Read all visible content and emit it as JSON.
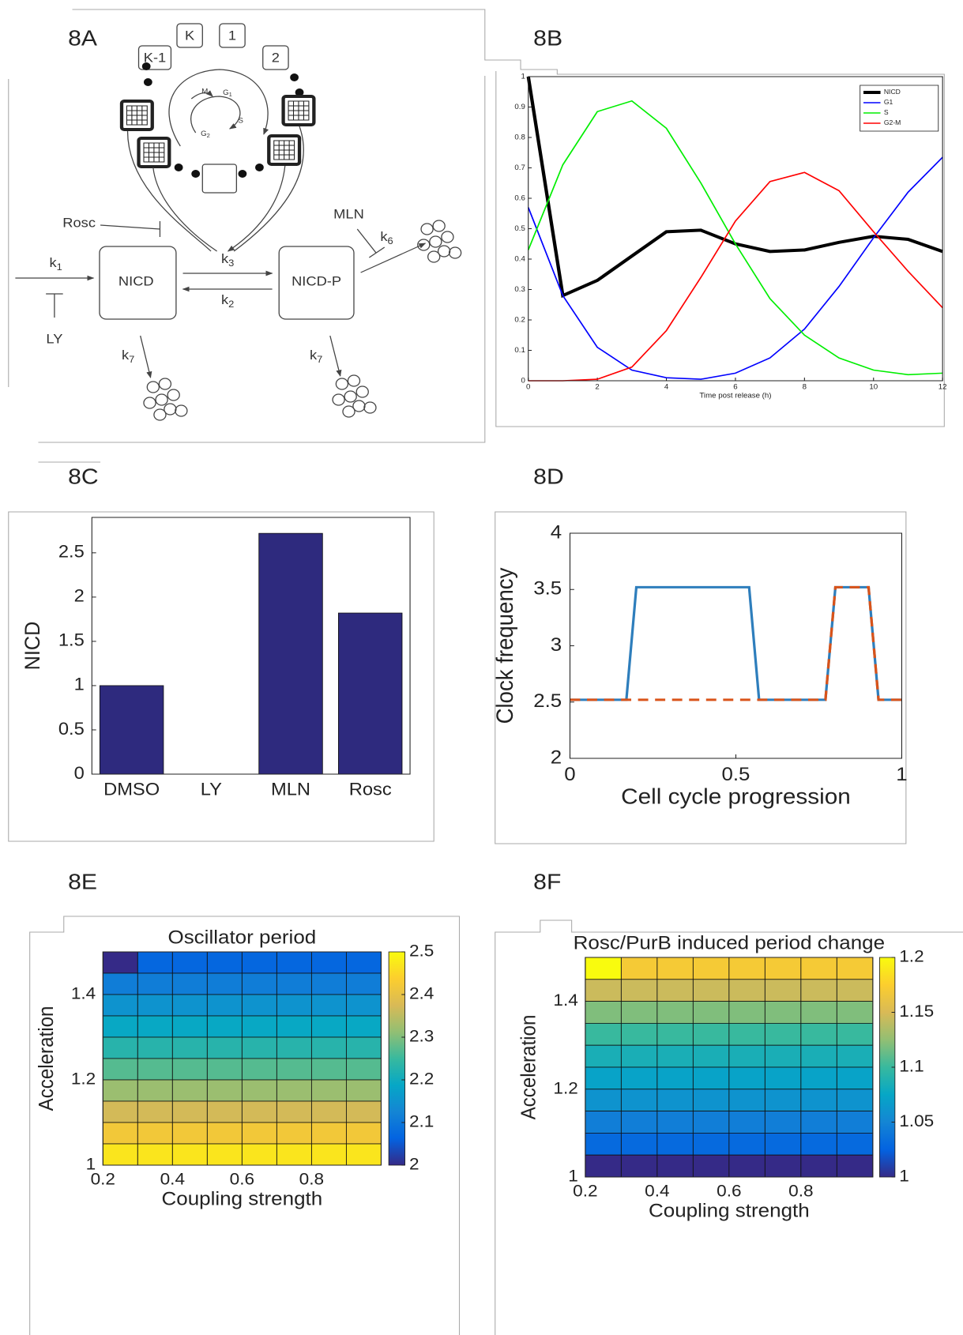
{
  "panel_labels": [
    "8A",
    "8B",
    "8C",
    "8D",
    "8E",
    "8F"
  ],
  "diagram": {
    "cycle_boxes": [
      "K",
      "1",
      "K-1",
      "2"
    ],
    "phases": [
      "M",
      "S"
    ],
    "phases_sub": [
      {
        "symbol": "G",
        "subscript": "1"
      },
      {
        "symbol": "G",
        "subscript": "2"
      }
    ],
    "drugs": [
      "Rosc",
      "MLN",
      "LY"
    ],
    "species": [
      "NICD",
      "NICD-P"
    ],
    "rates": [
      {
        "symbol": "k",
        "subscript": "1"
      },
      {
        "symbol": "k",
        "subscript": "3"
      },
      {
        "symbol": "k",
        "subscript": "2"
      },
      {
        "symbol": "k",
        "subscript": "6"
      },
      {
        "symbol": "k",
        "subscript": "7"
      },
      {
        "symbol": "k",
        "subscript": "7"
      }
    ]
  },
  "chart_data": [
    {
      "type": "line",
      "xlabel": "Time post release (h)",
      "x": [
        0,
        1,
        2,
        3,
        4,
        5,
        6,
        7,
        8,
        9,
        10,
        11,
        12
      ],
      "series": [
        {
          "name": "NICD",
          "color": "#000000",
          "width": 4,
          "values": [
            1.0,
            0.28,
            0.33,
            0.41,
            0.49,
            0.495,
            0.45,
            0.425,
            0.43,
            0.455,
            0.475,
            0.465,
            0.425
          ]
        },
        {
          "name": "G1",
          "color": "#0000ff",
          "width": 1.6,
          "values": [
            0.57,
            0.28,
            0.11,
            0.035,
            0.01,
            0.005,
            0.025,
            0.075,
            0.17,
            0.31,
            0.47,
            0.62,
            0.735
          ]
        },
        {
          "name": "S",
          "color": "#00ee00",
          "width": 1.6,
          "values": [
            0.43,
            0.71,
            0.885,
            0.92,
            0.83,
            0.65,
            0.45,
            0.27,
            0.15,
            0.075,
            0.035,
            0.02,
            0.025
          ]
        },
        {
          "name": "G2-M",
          "color": "#ff0000",
          "width": 1.6,
          "values": [
            0,
            0,
            0.005,
            0.045,
            0.165,
            0.34,
            0.525,
            0.655,
            0.685,
            0.625,
            0.49,
            0.36,
            0.24
          ]
        }
      ],
      "xlim": [
        0,
        12
      ],
      "ylim": [
        0,
        1
      ],
      "xticks": [
        0,
        2,
        4,
        6,
        8,
        10,
        12
      ],
      "yticks": [
        0,
        0.1,
        0.2,
        0.3,
        0.4,
        0.5,
        0.6,
        0.7,
        0.8,
        0.9,
        1
      ],
      "legend": "top-right"
    },
    {
      "type": "bar",
      "ylabel": "NICD",
      "categories": [
        "DMSO",
        "LY",
        "MLN",
        "Rosc"
      ],
      "values": [
        1,
        0,
        2.72,
        1.82
      ],
      "color": "#2e2a7e",
      "ylim": [
        0,
        2.9
      ],
      "yticks": [
        0,
        0.5,
        1,
        1.5,
        2,
        2.5
      ]
    },
    {
      "type": "step-line",
      "xlabel": "Cell cycle progression",
      "ylabel": "Clock frequency",
      "series": [
        {
          "color": "#2e7ebc",
          "dash": false,
          "x": [
            0,
            0.17,
            0.2,
            0.54,
            0.57,
            0.77,
            0.8,
            0.9,
            0.93,
            1
          ],
          "values": [
            2.52,
            2.52,
            3.52,
            3.52,
            2.52,
            2.52,
            3.52,
            3.52,
            2.52,
            2.52
          ]
        },
        {
          "color": "#d95319",
          "dash": true,
          "x": [
            0,
            0.77,
            0.8,
            0.9,
            0.93,
            1
          ],
          "values": [
            2.52,
            2.52,
            3.52,
            3.52,
            2.52,
            2.52
          ]
        }
      ],
      "xlim": [
        0,
        1
      ],
      "ylim": [
        2,
        4
      ],
      "xticks": [
        0,
        0.5,
        1
      ],
      "yticks": [
        2,
        2.5,
        3,
        3.5,
        4
      ]
    },
    {
      "type": "heatmap",
      "title": "Oscillator period",
      "xlabel": "Coupling strength",
      "ylabel": "Acceleration",
      "values": [
        [
          2.0,
          2.07,
          2.07,
          2.07,
          2.07,
          2.07,
          2.07,
          2.07
        ],
        [
          2.11,
          2.11,
          2.11,
          2.11,
          2.11,
          2.11,
          2.11,
          2.11
        ],
        [
          2.15,
          2.15,
          2.15,
          2.15,
          2.15,
          2.15,
          2.15,
          2.15
        ],
        [
          2.19,
          2.19,
          2.19,
          2.19,
          2.19,
          2.19,
          2.19,
          2.19
        ],
        [
          2.23,
          2.23,
          2.23,
          2.23,
          2.23,
          2.23,
          2.23,
          2.23
        ],
        [
          2.27,
          2.27,
          2.27,
          2.27,
          2.27,
          2.27,
          2.27,
          2.27
        ],
        [
          2.32,
          2.32,
          2.32,
          2.32,
          2.32,
          2.32,
          2.32,
          2.32
        ],
        [
          2.37,
          2.37,
          2.37,
          2.37,
          2.37,
          2.37,
          2.37,
          2.37
        ],
        [
          2.42,
          2.42,
          2.42,
          2.42,
          2.42,
          2.42,
          2.42,
          2.42
        ],
        [
          2.47,
          2.47,
          2.47,
          2.47,
          2.47,
          2.47,
          2.47,
          2.47
        ]
      ],
      "xlim": [
        0.2,
        1
      ],
      "ylim": [
        1,
        1.5
      ],
      "xticks": [
        0.2,
        0.4,
        0.6,
        0.8
      ],
      "yticks": [
        1,
        1.2,
        1.4
      ],
      "clim": [
        2,
        2.5
      ],
      "cticks": [
        2,
        2.1,
        2.2,
        2.3,
        2.4,
        2.5
      ],
      "colormap": [
        "#352a87",
        "#0363e1",
        "#1485d4",
        "#06a7c6",
        "#38b99e",
        "#92bf73",
        "#d9ba56",
        "#fcce2e",
        "#f9fb0e"
      ]
    },
    {
      "type": "heatmap",
      "title": "Rosc/PurB induced period change",
      "xlabel": "Coupling strength",
      "ylabel": "Acceleration",
      "values": [
        [
          1.2,
          1.17,
          1.17,
          1.17,
          1.17,
          1.17,
          1.17,
          1.17
        ],
        [
          1.145,
          1.145,
          1.145,
          1.145,
          1.145,
          1.145,
          1.145,
          1.145
        ],
        [
          1.12,
          1.12,
          1.12,
          1.12,
          1.12,
          1.12,
          1.12,
          1.12
        ],
        [
          1.1,
          1.1,
          1.1,
          1.1,
          1.1,
          1.1,
          1.1,
          1.1
        ],
        [
          1.085,
          1.085,
          1.085,
          1.085,
          1.085,
          1.085,
          1.085,
          1.085
        ],
        [
          1.072,
          1.072,
          1.072,
          1.072,
          1.072,
          1.072,
          1.072,
          1.072
        ],
        [
          1.06,
          1.06,
          1.06,
          1.06,
          1.06,
          1.06,
          1.06,
          1.06
        ],
        [
          1.045,
          1.045,
          1.045,
          1.045,
          1.045,
          1.045,
          1.045,
          1.045
        ],
        [
          1.03,
          1.03,
          1.03,
          1.03,
          1.03,
          1.03,
          1.03,
          1.03
        ],
        [
          1.0,
          1.0,
          1.0,
          1.0,
          1.0,
          1.0,
          1.0,
          1.0
        ]
      ],
      "xlim": [
        0.2,
        1
      ],
      "ylim": [
        1,
        1.5
      ],
      "xticks": [
        0.2,
        0.4,
        0.6,
        0.8
      ],
      "yticks": [
        1,
        1.2,
        1.4
      ],
      "clim": [
        1,
        1.2
      ],
      "cticks": [
        1,
        1.05,
        1.1,
        1.15,
        1.2
      ],
      "colormap": [
        "#352a87",
        "#0363e1",
        "#1485d4",
        "#06a7c6",
        "#38b99e",
        "#92bf73",
        "#d9ba56",
        "#fcce2e",
        "#f9fb0e"
      ]
    }
  ]
}
